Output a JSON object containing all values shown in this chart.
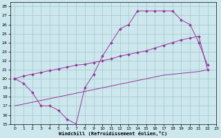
{
  "xlabel": "Windchill (Refroidissement éolien,°C)",
  "bg_color": "#cce8ee",
  "grid_color": "#aacccc",
  "line_color": "#993399",
  "xlim": [
    -0.5,
    23
  ],
  "ylim": [
    15,
    28.5
  ],
  "xticks": [
    0,
    1,
    2,
    3,
    4,
    5,
    6,
    7,
    8,
    9,
    10,
    11,
    12,
    13,
    14,
    15,
    16,
    17,
    18,
    19,
    20,
    21,
    22,
    23
  ],
  "yticks": [
    15,
    16,
    17,
    18,
    19,
    20,
    21,
    22,
    23,
    24,
    25,
    26,
    27,
    28
  ],
  "line1_x": [
    0,
    1,
    2,
    3,
    4,
    5,
    6,
    7,
    8,
    9,
    10,
    11,
    12,
    13,
    14,
    15,
    16,
    17,
    18,
    19,
    20,
    21,
    22
  ],
  "line1_y": [
    20.0,
    19.5,
    18.5,
    17.0,
    17.0,
    16.5,
    15.5,
    15.0,
    19.0,
    20.5,
    22.5,
    24.0,
    25.5,
    26.0,
    27.5,
    27.5,
    27.5,
    27.5,
    27.5,
    26.5,
    26.0,
    24.0,
    21.5
  ],
  "line2_x": [
    0,
    1,
    2,
    3,
    4,
    5,
    6,
    7,
    8,
    9,
    10,
    11,
    12,
    13,
    14,
    15,
    16,
    17,
    18,
    19,
    20,
    21,
    22
  ],
  "line2_y": [
    20.0,
    20.3,
    20.5,
    20.7,
    20.9,
    21.1,
    21.3,
    21.5,
    21.6,
    21.8,
    22.0,
    22.2,
    22.5,
    22.7,
    22.9,
    23.1,
    23.4,
    23.7,
    24.0,
    24.3,
    24.5,
    24.7,
    21.0
  ],
  "line3_x": [
    0,
    1,
    2,
    3,
    4,
    5,
    6,
    7,
    8,
    9,
    10,
    11,
    12,
    13,
    14,
    15,
    16,
    17,
    18,
    19,
    20,
    21,
    22
  ],
  "line3_y": [
    17.0,
    17.2,
    17.4,
    17.6,
    17.8,
    18.0,
    18.2,
    18.4,
    18.6,
    18.8,
    19.0,
    19.2,
    19.4,
    19.6,
    19.8,
    20.0,
    20.2,
    20.4,
    20.5,
    20.6,
    20.7,
    20.8,
    21.0
  ]
}
